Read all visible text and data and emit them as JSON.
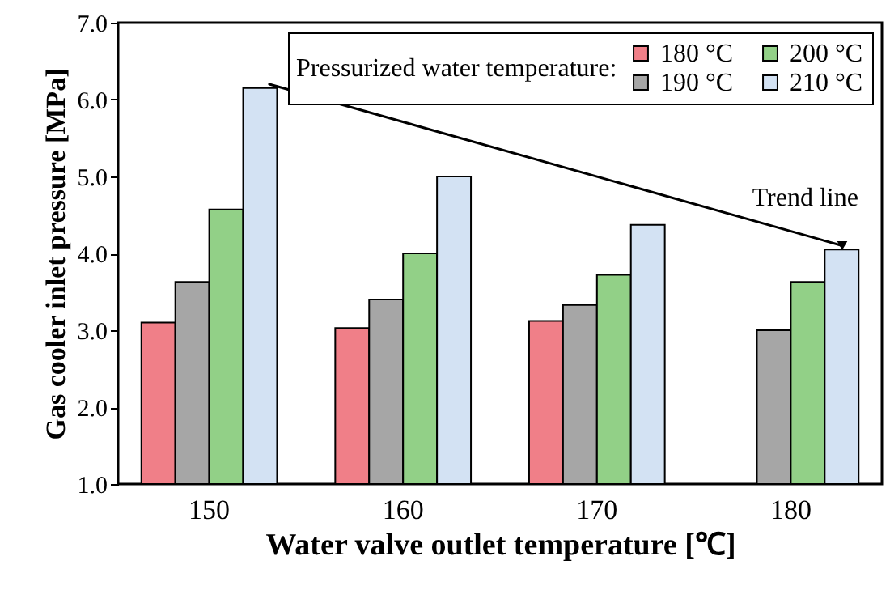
{
  "chart_data": {
    "type": "bar",
    "xlabel": "Water valve outlet temperature [℃]",
    "ylabel": "Gas cooler inlet pressure [MPa]",
    "legend_title": "Pressurized water temperature:",
    "categories": [
      "150",
      "160",
      "170",
      "180"
    ],
    "ylim": [
      1.0,
      7.0
    ],
    "yticks": [
      {
        "value": 1,
        "label": "1.0"
      },
      {
        "value": 2,
        "label": "2.0"
      },
      {
        "value": 3,
        "label": "3.0"
      },
      {
        "value": 4,
        "label": "4.0"
      },
      {
        "value": 5,
        "label": "5.0"
      },
      {
        "value": 6,
        "label": "6.0"
      },
      {
        "value": 7,
        "label": "7.0"
      }
    ],
    "grid": false,
    "legend": "top right",
    "series": [
      {
        "name": "180 °C",
        "color": "#f07f88",
        "values": [
          3.1,
          3.03,
          3.12,
          null
        ]
      },
      {
        "name": "190 °C",
        "color": "#a6a6a6",
        "values": [
          3.63,
          3.4,
          3.33,
          3.0
        ]
      },
      {
        "name": "200 °C",
        "color": "#92d087",
        "values": [
          4.57,
          4.0,
          3.72,
          3.63
        ]
      },
      {
        "name": "210 °C",
        "color": "#d3e2f3",
        "values": [
          6.15,
          5.0,
          4.37,
          4.05
        ]
      },
      {
        "type": "line",
        "name": "Trend line",
        "color": "#000000",
        "x": [
          "150",
          "180"
        ],
        "values": [
          6.2,
          4.1
        ]
      }
    ]
  }
}
